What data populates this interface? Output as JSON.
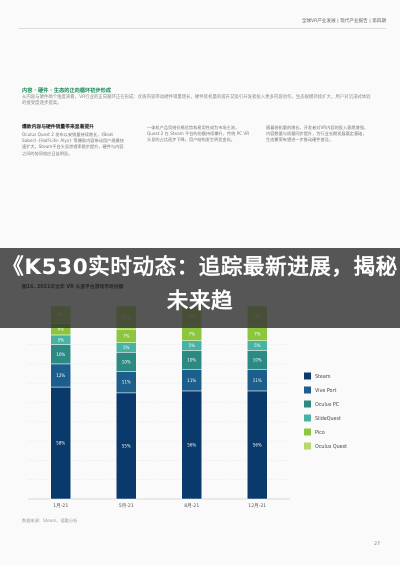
{
  "header": {
    "logo_text": "全球VR产业发展 | 现代产业报告 | 第四期"
  },
  "section": {
    "title": "内容 · 硬件 · 生态的正向循环初步形成",
    "body": "从内容与硬件两个维度来看，VR行业的正向循环正在形成：优质内容带动硬件销量增长，硬件装机量的提升又吸引开发者投入更多内容创作，生态规模持续扩大，用户对沉浸式体验的接受度逐步提高。"
  },
  "columns": [
    {
      "heading": "爆款内容与硬件销量带来显著提升",
      "text": "Oculus Quest 2 发布以来销量持续增长，《Beat Saber》《Half-Life: Alyx》等爆款内容带动用户规模快速扩大，Steam平台头显渗透率稳步提升，硬件与内容之间的协同效应日益明显。"
    },
    {
      "heading": "",
      "text": "一体机产品凭借价格优势和易用性成为市场主流，Quest 2 在 Steam 平台的份额持续攀升，传统 PC VR 头显的占比逐步下降，用户结构发生明显变化。"
    },
    {
      "heading": "",
      "text": "随着装机量的增长，开发者对VR内容的投入意愿增强，内容数量与质量同步提升，为行业长期发展奠定基础，生态繁荣有望进一步推动硬件普及。"
    }
  ],
  "banner": {
    "text": "《K530实时动态：追踪最新进展，揭秘未来趋"
  },
  "figure": {
    "title": "图16. 2021年全年 VR 头显平台游戏市场份额",
    "footnote": "数据来源：Steam，德勤分析"
  },
  "page_number": "27",
  "chart_data": {
    "type": "bar",
    "stacked": true,
    "categories": [
      "1月-21",
      "5月-21",
      "8月-21",
      "12月-21"
    ],
    "series": [
      {
        "name": "Steam",
        "values": [
          58,
          55,
          56,
          56
        ],
        "color": "#0a3a6b"
      },
      {
        "name": "Vive Port",
        "values": [
          12,
          11,
          11,
          11
        ],
        "color": "#1c5f8c"
      },
      {
        "name": "Oculus PC",
        "values": [
          10,
          10,
          10,
          10
        ],
        "color": "#2d8a82"
      },
      {
        "name": "SlideQuest",
        "values": [
          5,
          5,
          5,
          5
        ],
        "color": "#49b3a3"
      },
      {
        "name": "Pico",
        "values": [
          6,
          7,
          7,
          7
        ],
        "color": "#8cc63f"
      },
      {
        "name": "Oculus Quest",
        "values": [
          9,
          12,
          11,
          11
        ],
        "color": "#b5d96a"
      }
    ],
    "ylim": [
      0,
      100
    ],
    "grid": true,
    "legend_position": "right"
  }
}
